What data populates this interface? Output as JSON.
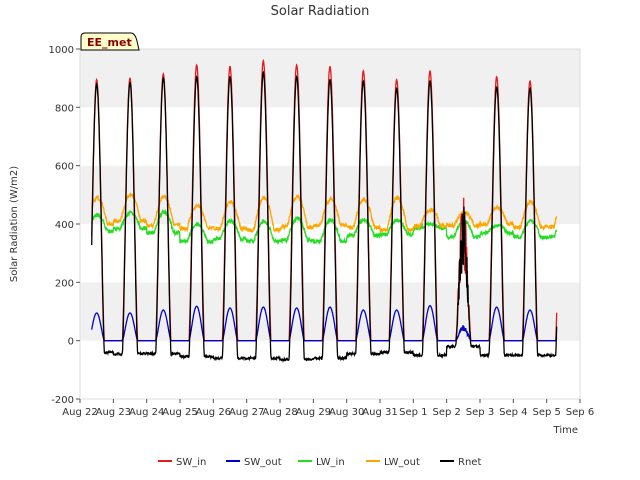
{
  "chart_data": {
    "type": "line",
    "title": "Solar Radiation",
    "xlabel": "Time",
    "ylabel": "Solar Radiation (W/m2)",
    "badge": "EE_met",
    "ylim": [
      -200,
      1000
    ],
    "yticks": [
      -200,
      0,
      200,
      400,
      600,
      800,
      1000
    ],
    "xlim": [
      0,
      15
    ],
    "xticks": [
      "Aug 22",
      "Aug 23",
      "Aug 24",
      "Aug 25",
      "Aug 26",
      "Aug 27",
      "Aug 28",
      "Aug 29",
      "Aug 30",
      "Aug 31",
      "Sep 1",
      "Sep 2",
      "Sep 3",
      "Sep 4",
      "Sep 5",
      "Sep 6"
    ],
    "x_units": "days since Aug 22 (daily samples at local noon peak)",
    "grid": "horizontal bands",
    "legend_position": "bottom",
    "series": [
      {
        "name": "SW_in",
        "color": "#e41a1c",
        "daily_peak": [
          895,
          900,
          915,
          945,
          940,
          960,
          945,
          940,
          925,
          895,
          925,
          420,
          905,
          890
        ]
      },
      {
        "name": "SW_out",
        "color": "#0000cc",
        "daily_peak": [
          95,
          95,
          105,
          118,
          112,
          115,
          112,
          115,
          105,
          105,
          120,
          50,
          115,
          105
        ]
      },
      {
        "name": "LW_in",
        "color": "#22dd22",
        "daily_night": [
          375,
          385,
          370,
          340,
          350,
          340,
          345,
          340,
          360,
          365,
          385,
          355,
          370,
          355,
          355
        ],
        "daily_peak": [
          430,
          440,
          440,
          400,
          410,
          410,
          420,
          415,
          415,
          415,
          400,
          410,
          395,
          410
        ]
      },
      {
        "name": "LW_out",
        "color": "#ffa500",
        "daily_night": [
          400,
          410,
          395,
          385,
          385,
          380,
          390,
          395,
          390,
          380,
          395,
          395,
          400,
          390,
          395
        ],
        "daily_peak": [
          490,
          500,
          495,
          465,
          475,
          490,
          495,
          485,
          485,
          490,
          450,
          440,
          455,
          475
        ]
      },
      {
        "name": "Rnet",
        "color": "#000000",
        "daily_night": [
          -40,
          -45,
          -45,
          -55,
          -60,
          -60,
          -65,
          -60,
          -45,
          -40,
          -50,
          -20,
          -50,
          -50,
          -55
        ],
        "daily_peak": [
          880,
          885,
          900,
          905,
          905,
          920,
          905,
          895,
          890,
          865,
          890,
          400,
          870,
          865
        ]
      }
    ]
  }
}
